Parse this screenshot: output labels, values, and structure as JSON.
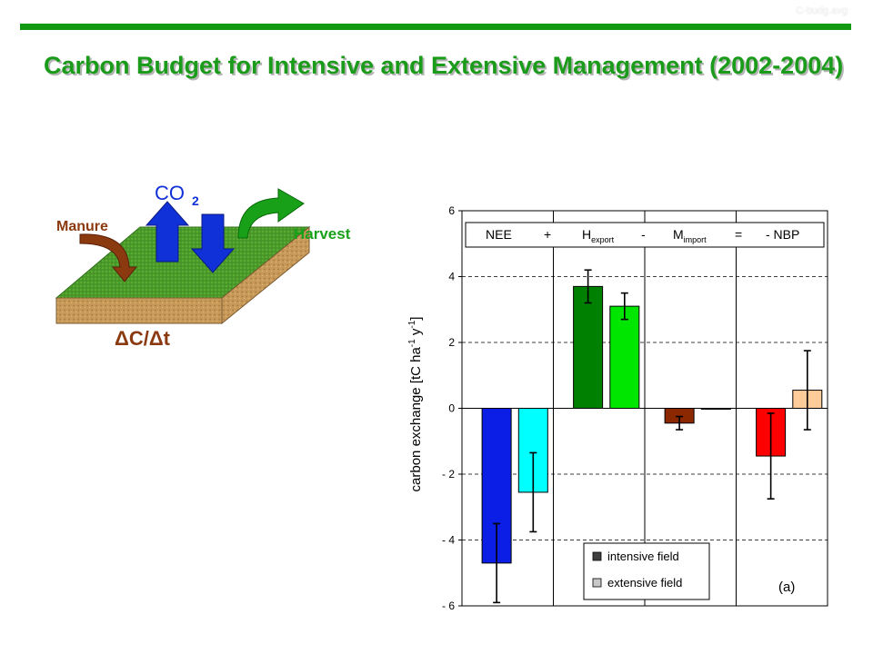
{
  "slide": {
    "corner_tag": "C-budg.avg",
    "title": "Carbon Budget for Intensive and Extensive Management (2002-2004)"
  },
  "diagram": {
    "co2_label": "CO",
    "co2_subscript": "2",
    "manure_label": "Manure",
    "harvest_label": "Harvest",
    "delta_label": "ΔC/Δt",
    "colors": {
      "soil_top": "#4a9a2a",
      "soil_side": "#c89a5a",
      "manure_arrow": "#8b3a10",
      "co2_arrows": "#1030d8",
      "harvest_arrow": "#18a018",
      "manure_text": "#8b3a10",
      "co2_text": "#1030d8",
      "harvest_text": "#18a018",
      "delta_text": "#8b3a10"
    }
  },
  "chart_data": {
    "type": "bar",
    "ylabel": "carbon exchange [tC ha",
    "ylabel_sup1": "-1",
    "ylabel_mid": " y",
    "ylabel_sup2": "-1",
    "ylabel_end": "]",
    "ylim": [
      -6,
      6
    ],
    "yticks": [
      6,
      4,
      2,
      0,
      -2,
      -4,
      -6
    ],
    "ytick_labels": [
      "6",
      "4",
      "2",
      "0",
      "- 2",
      "- 4",
      "- 6"
    ],
    "grid": true,
    "panel_label": "(a)",
    "equation": {
      "t1": "NEE",
      "op1": "+",
      "t2": "H",
      "t2_sub": "export",
      "op2": "-",
      "t3": "M",
      "t3_sub": "import",
      "op3": "=",
      "t4": "- NBP"
    },
    "legend": {
      "position": "bottom-right",
      "entries": [
        {
          "name": "intensive field",
          "color": "#404040"
        },
        {
          "name": "extensive field",
          "color": "#c8c8c8"
        }
      ]
    },
    "groups": [
      {
        "key": "NEE",
        "intensive": {
          "value": -4.7,
          "err": 1.2,
          "color": "#0a1ee6"
        },
        "extensive": {
          "value": -2.55,
          "err": 1.2,
          "color": "#00ffff"
        }
      },
      {
        "key": "H_export",
        "intensive": {
          "value": 3.7,
          "err": 0.5,
          "color": "#008000"
        },
        "extensive": {
          "value": 3.1,
          "err": 0.4,
          "color": "#00e600"
        }
      },
      {
        "key": "M_import",
        "intensive": {
          "value": -0.45,
          "err": 0.2,
          "color": "#8b2800"
        },
        "extensive": {
          "value": 0.0,
          "err": 0.0,
          "color": "#a05a2c"
        }
      },
      {
        "key": "NBP",
        "intensive": {
          "value": -1.45,
          "err": 1.3,
          "color": "#ff0000"
        },
        "extensive": {
          "value": 0.55,
          "err": 1.2,
          "color": "#ffcc99"
        }
      }
    ]
  }
}
